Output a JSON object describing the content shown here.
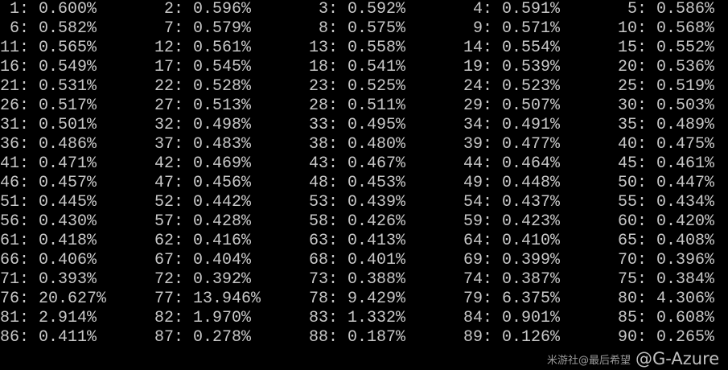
{
  "console": {
    "text_color": "#c8c8c8",
    "background": "#000000",
    "columns": 5,
    "entries": [
      {
        "index": 1,
        "value": "0.600%"
      },
      {
        "index": 2,
        "value": "0.596%"
      },
      {
        "index": 3,
        "value": "0.592%"
      },
      {
        "index": 4,
        "value": "0.591%"
      },
      {
        "index": 5,
        "value": "0.586%"
      },
      {
        "index": 6,
        "value": "0.582%"
      },
      {
        "index": 7,
        "value": "0.579%"
      },
      {
        "index": 8,
        "value": "0.575%"
      },
      {
        "index": 9,
        "value": "0.571%"
      },
      {
        "index": 10,
        "value": "0.568%"
      },
      {
        "index": 11,
        "value": "0.565%"
      },
      {
        "index": 12,
        "value": "0.561%"
      },
      {
        "index": 13,
        "value": "0.558%"
      },
      {
        "index": 14,
        "value": "0.554%"
      },
      {
        "index": 15,
        "value": "0.552%"
      },
      {
        "index": 16,
        "value": "0.549%"
      },
      {
        "index": 17,
        "value": "0.545%"
      },
      {
        "index": 18,
        "value": "0.541%"
      },
      {
        "index": 19,
        "value": "0.539%"
      },
      {
        "index": 20,
        "value": "0.536%"
      },
      {
        "index": 21,
        "value": "0.531%"
      },
      {
        "index": 22,
        "value": "0.528%"
      },
      {
        "index": 23,
        "value": "0.525%"
      },
      {
        "index": 24,
        "value": "0.523%"
      },
      {
        "index": 25,
        "value": "0.519%"
      },
      {
        "index": 26,
        "value": "0.517%"
      },
      {
        "index": 27,
        "value": "0.513%"
      },
      {
        "index": 28,
        "value": "0.511%"
      },
      {
        "index": 29,
        "value": "0.507%"
      },
      {
        "index": 30,
        "value": "0.503%"
      },
      {
        "index": 31,
        "value": "0.501%"
      },
      {
        "index": 32,
        "value": "0.498%"
      },
      {
        "index": 33,
        "value": "0.495%"
      },
      {
        "index": 34,
        "value": "0.491%"
      },
      {
        "index": 35,
        "value": "0.489%"
      },
      {
        "index": 36,
        "value": "0.486%"
      },
      {
        "index": 37,
        "value": "0.483%"
      },
      {
        "index": 38,
        "value": "0.480%"
      },
      {
        "index": 39,
        "value": "0.477%"
      },
      {
        "index": 40,
        "value": "0.475%"
      },
      {
        "index": 41,
        "value": "0.471%"
      },
      {
        "index": 42,
        "value": "0.469%"
      },
      {
        "index": 43,
        "value": "0.467%"
      },
      {
        "index": 44,
        "value": "0.464%"
      },
      {
        "index": 45,
        "value": "0.461%"
      },
      {
        "index": 46,
        "value": "0.457%"
      },
      {
        "index": 47,
        "value": "0.456%"
      },
      {
        "index": 48,
        "value": "0.453%"
      },
      {
        "index": 49,
        "value": "0.448%"
      },
      {
        "index": 50,
        "value": "0.447%"
      },
      {
        "index": 51,
        "value": "0.445%"
      },
      {
        "index": 52,
        "value": "0.442%"
      },
      {
        "index": 53,
        "value": "0.439%"
      },
      {
        "index": 54,
        "value": "0.437%"
      },
      {
        "index": 55,
        "value": "0.434%"
      },
      {
        "index": 56,
        "value": "0.430%"
      },
      {
        "index": 57,
        "value": "0.428%"
      },
      {
        "index": 58,
        "value": "0.426%"
      },
      {
        "index": 59,
        "value": "0.423%"
      },
      {
        "index": 60,
        "value": "0.420%"
      },
      {
        "index": 61,
        "value": "0.418%"
      },
      {
        "index": 62,
        "value": "0.416%"
      },
      {
        "index": 63,
        "value": "0.413%"
      },
      {
        "index": 64,
        "value": "0.410%"
      },
      {
        "index": 65,
        "value": "0.408%"
      },
      {
        "index": 66,
        "value": "0.406%"
      },
      {
        "index": 67,
        "value": "0.404%"
      },
      {
        "index": 68,
        "value": "0.401%"
      },
      {
        "index": 69,
        "value": "0.399%"
      },
      {
        "index": 70,
        "value": "0.396%"
      },
      {
        "index": 71,
        "value": "0.393%"
      },
      {
        "index": 72,
        "value": "0.392%"
      },
      {
        "index": 73,
        "value": "0.388%"
      },
      {
        "index": 74,
        "value": "0.387%"
      },
      {
        "index": 75,
        "value": "0.384%"
      },
      {
        "index": 76,
        "value": "20.627%"
      },
      {
        "index": 77,
        "value": "13.946%"
      },
      {
        "index": 78,
        "value": "9.429%"
      },
      {
        "index": 79,
        "value": "6.375%"
      },
      {
        "index": 80,
        "value": "4.306%"
      },
      {
        "index": 81,
        "value": "2.914%"
      },
      {
        "index": 82,
        "value": "1.970%"
      },
      {
        "index": 83,
        "value": "1.332%"
      },
      {
        "index": 84,
        "value": "0.901%"
      },
      {
        "index": 85,
        "value": "0.608%"
      },
      {
        "index": 86,
        "value": "0.411%"
      },
      {
        "index": 87,
        "value": "0.278%"
      },
      {
        "index": 88,
        "value": "0.187%"
      },
      {
        "index": 89,
        "value": "0.126%"
      },
      {
        "index": 90,
        "value": "0.265%"
      }
    ]
  },
  "watermark": {
    "line1": "@G-Azure",
    "line2": "米游社@最后希望"
  }
}
